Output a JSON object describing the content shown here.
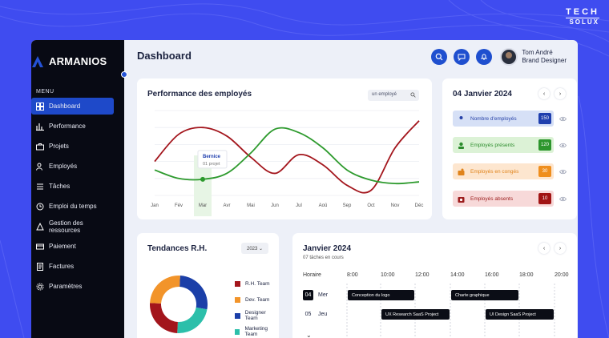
{
  "brand_corner": {
    "line1": "TECH",
    "line2": "SOLUX"
  },
  "app": {
    "name": "ARMANIOS",
    "menu_label": "MENU"
  },
  "sidebar": {
    "items": [
      {
        "label": "Dashboard",
        "icon": "grid-icon",
        "active": true
      },
      {
        "label": "Performance",
        "icon": "bar-chart-icon"
      },
      {
        "label": "Projets",
        "icon": "briefcase-icon"
      },
      {
        "label": "Employés",
        "icon": "users-icon"
      },
      {
        "label": "Tâches",
        "icon": "tasks-icon"
      },
      {
        "label": "Emploi du temps",
        "icon": "clock-icon"
      },
      {
        "label": "Gestion des ressources",
        "icon": "resources-icon"
      },
      {
        "label": "Paiement",
        "icon": "payment-icon"
      },
      {
        "label": "Factures",
        "icon": "invoice-icon"
      },
      {
        "label": "Paramètres",
        "icon": "gear-icon"
      }
    ]
  },
  "header": {
    "title": "Dashboard",
    "user_name": "Tom André",
    "user_role": "Brand Designer"
  },
  "performance": {
    "title": "Performance des employés",
    "search_placeholder": "un employé",
    "tooltip": {
      "name": "Bernice",
      "detail": "01 projet"
    }
  },
  "chart_data": {
    "type": "line",
    "title": "Performance des employés",
    "categories": [
      "Jan",
      "Fév",
      "Mar",
      "Avr",
      "Mai",
      "Jun",
      "Jul",
      "Aoû",
      "Sep",
      "Oct",
      "Nov",
      "Déc"
    ],
    "series": [
      {
        "color": "#a3151c",
        "values": [
          40,
          72,
          80,
          70,
          45,
          26,
          48,
          36,
          12,
          6,
          56,
          88
        ]
      },
      {
        "color": "#2d9a2d",
        "values": [
          30,
          20,
          19,
          26,
          50,
          78,
          74,
          56,
          30,
          18,
          14,
          16
        ]
      }
    ],
    "highlight_category": "Mar",
    "grid": true
  },
  "date_card": {
    "title": "04 Janvier 2024",
    "stats": [
      {
        "label": "Nombre d'employés",
        "value": "150",
        "bg": "#d6e0f6",
        "fg": "#2742a8",
        "numbg": "#1f3fae",
        "icon": "users-icon"
      },
      {
        "label": "Employés présents",
        "value": "120",
        "bg": "#dcf2d6",
        "fg": "#2c8c2c",
        "numbg": "#2d962d",
        "icon": "user-check-icon"
      },
      {
        "label": "Employés en congés",
        "value": "30",
        "bg": "#fde6cf",
        "fg": "#e0831a",
        "numbg": "#ef8e1d",
        "icon": "vacation-icon"
      },
      {
        "label": "Employés absents",
        "value": "10",
        "bg": "#f7d9d9",
        "fg": "#9c1c1c",
        "numbg": "#a11414",
        "icon": "user-x-icon"
      }
    ]
  },
  "trend": {
    "title": "Tendances R.H.",
    "year": "2023",
    "legend": [
      {
        "label": "R.H. Team",
        "color": "#a3151c",
        "value": 25
      },
      {
        "label": "Dev. Team",
        "color": "#f2942a",
        "value": 25
      },
      {
        "label": "Designer Team",
        "color": "#1b3fa8",
        "value": 27
      },
      {
        "label": "Marketing Team",
        "color": "#2cbfaa",
        "value": 23
      }
    ]
  },
  "calendar": {
    "title": "Janvier 2024",
    "subtitle": "07 tâches en cours",
    "horaire": "Horaire",
    "hours": [
      "8:00",
      "10:00",
      "12:00",
      "14:00",
      "16:00",
      "18:00",
      "20:00"
    ],
    "days": [
      {
        "num": "04",
        "name": "Mer",
        "selected": true
      },
      {
        "num": "05",
        "name": "Jeu",
        "selected": false
      }
    ],
    "events": [
      {
        "label": "Conception du logo",
        "day": 0,
        "start": "8:00",
        "end": "12:00"
      },
      {
        "label": "Charte graphique",
        "day": 0,
        "start": "14:00",
        "end": "18:00"
      },
      {
        "label": "UX Research SaaS Project",
        "day": 1,
        "start": "10:00",
        "end": "14:00"
      },
      {
        "label": "UI Design SaaS Project",
        "day": 1,
        "start": "16:00",
        "end": "20:00"
      }
    ]
  },
  "arrows": {
    "prev": "‹",
    "next": "›"
  }
}
